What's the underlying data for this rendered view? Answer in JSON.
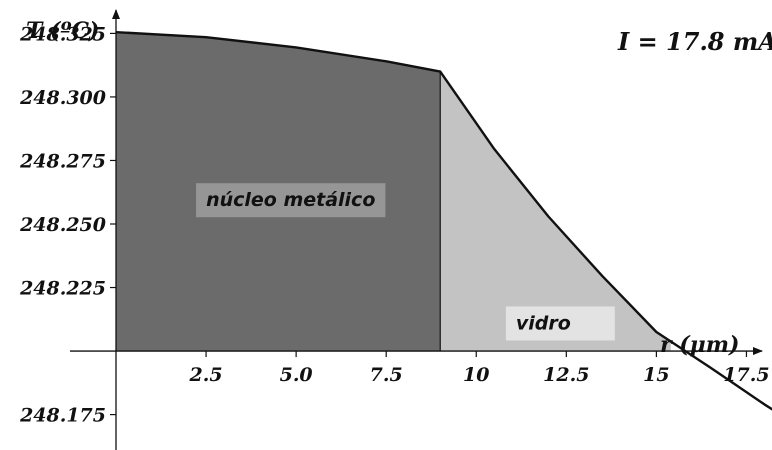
{
  "chart_data": {
    "type": "area",
    "title": "",
    "annotation": "I = 17.8 mA",
    "xlabel": "r (μm)",
    "ylabel": "T (ºC)",
    "xlim": [
      0,
      19.5
    ],
    "ylim": [
      248.165,
      248.335
    ],
    "x_axis_crossing_y": 248.2,
    "x_ticks": [
      {
        "value": 2.5,
        "label": "2.5"
      },
      {
        "value": 5.0,
        "label": "5.0"
      },
      {
        "value": 7.5,
        "label": "7.5"
      },
      {
        "value": 10,
        "label": "10"
      },
      {
        "value": 12.5,
        "label": "12.5"
      },
      {
        "value": 15,
        "label": "15"
      },
      {
        "value": 17.5,
        "label": "17.5"
      }
    ],
    "y_ticks": [
      {
        "value": 248.325,
        "label": "248.325"
      },
      {
        "value": 248.3,
        "label": "248.300"
      },
      {
        "value": 248.275,
        "label": "248.275"
      },
      {
        "value": 248.25,
        "label": "248.250"
      },
      {
        "value": 248.225,
        "label": "248.225"
      },
      {
        "value": 248.175,
        "label": "248.175"
      }
    ],
    "series": [
      {
        "x": [
          0,
          2.5,
          5.0,
          7.5,
          9.0,
          10.5,
          12.0,
          13.5,
          15.0,
          16.5,
          18.0,
          18.9
        ],
        "y": [
          248.3255,
          248.3235,
          248.3195,
          248.314,
          248.31,
          248.2795,
          248.253,
          248.2295,
          248.2075,
          248.1935,
          248.179,
          248.171
        ]
      }
    ],
    "regions": [
      {
        "label": "núcleo metálico",
        "x_range": [
          0,
          9.0
        ],
        "color": "#6b6b6b"
      },
      {
        "label": "vidro",
        "x_range": [
          9.0,
          15.4
        ],
        "color": "#c3c3c3"
      }
    ],
    "region_label_bg": "#969696",
    "line_color": "#111111",
    "grid": false,
    "legend": "none"
  }
}
